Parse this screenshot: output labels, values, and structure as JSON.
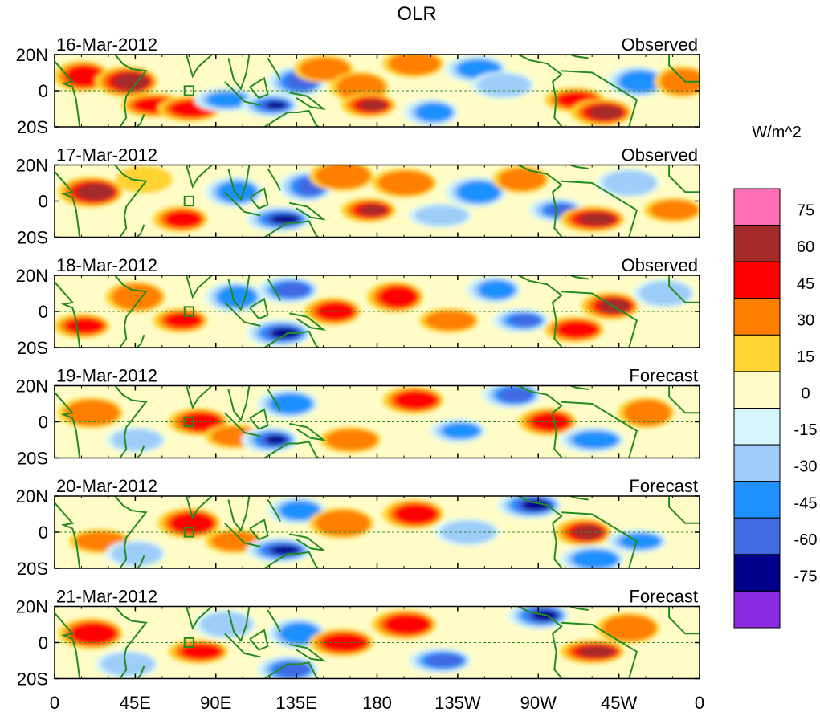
{
  "chart_data": {
    "type": "heatmap",
    "title": "OLR",
    "units_label": "W/m^2",
    "panels": [
      {
        "date": "16-Mar-2012",
        "kind": "Observed"
      },
      {
        "date": "17-Mar-2012",
        "kind": "Observed"
      },
      {
        "date": "18-Mar-2012",
        "kind": "Observed"
      },
      {
        "date": "19-Mar-2012",
        "kind": "Forecast"
      },
      {
        "date": "20-Mar-2012",
        "kind": "Forecast"
      },
      {
        "date": "21-Mar-2012",
        "kind": "Forecast"
      }
    ],
    "x_ticks": [
      "0",
      "45E",
      "90E",
      "135E",
      "180",
      "135W",
      "90W",
      "45W",
      "0"
    ],
    "y_ticks": [
      "20N",
      "0",
      "20S"
    ],
    "xlim_deg_east": [
      0,
      360
    ],
    "ylim_deg_north": [
      -20,
      20
    ],
    "colorbar": {
      "tick_labels": [
        "75",
        "60",
        "45",
        "30",
        "15",
        "0",
        "-15",
        "-30",
        "-45",
        "-60",
        "-75"
      ],
      "levels": [
        -75,
        -60,
        -45,
        -30,
        -15,
        0,
        15,
        30,
        45,
        60,
        75
      ],
      "colors": [
        "#8a2be2",
        "#00008b",
        "#4169e1",
        "#1e90ff",
        "#9fcdf9",
        "#d4f6fc",
        "#fffcc8",
        "#fed332",
        "#ff7f00",
        "#ff0000",
        "#a52a2a",
        "#ff6eb4"
      ]
    },
    "anomaly_regions": [
      [
        {
          "lon": 15,
          "lat": 8,
          "level": 3
        },
        {
          "lon": 40,
          "lat": 5,
          "level": 4
        },
        {
          "lon": 55,
          "lat": -8,
          "level": 3
        },
        {
          "lon": 75,
          "lat": -10,
          "level": 3
        },
        {
          "lon": 95,
          "lat": -5,
          "level": -3
        },
        {
          "lon": 120,
          "lat": -8,
          "level": -5
        },
        {
          "lon": 135,
          "lat": 5,
          "level": -4
        },
        {
          "lon": 150,
          "lat": 12,
          "level": 2
        },
        {
          "lon": 170,
          "lat": 2,
          "level": 2
        },
        {
          "lon": 175,
          "lat": -8,
          "level": 4
        },
        {
          "lon": 200,
          "lat": 15,
          "level": 2
        },
        {
          "lon": 210,
          "lat": -12,
          "level": -3
        },
        {
          "lon": 235,
          "lat": 12,
          "level": -3
        },
        {
          "lon": 250,
          "lat": 3,
          "level": -2
        },
        {
          "lon": 290,
          "lat": -5,
          "level": 3
        },
        {
          "lon": 305,
          "lat": -12,
          "level": 4
        },
        {
          "lon": 325,
          "lat": 5,
          "level": -3
        },
        {
          "lon": 350,
          "lat": 5,
          "level": 2
        }
      ],
      [
        {
          "lon": 20,
          "lat": 5,
          "level": 4
        },
        {
          "lon": 50,
          "lat": 12,
          "level": 1
        },
        {
          "lon": 70,
          "lat": -10,
          "level": 3
        },
        {
          "lon": 100,
          "lat": 5,
          "level": -3
        },
        {
          "lon": 125,
          "lat": -10,
          "level": -5
        },
        {
          "lon": 140,
          "lat": 8,
          "level": -4
        },
        {
          "lon": 160,
          "lat": 14,
          "level": 2
        },
        {
          "lon": 175,
          "lat": -5,
          "level": 4
        },
        {
          "lon": 195,
          "lat": 10,
          "level": 2
        },
        {
          "lon": 215,
          "lat": -8,
          "level": -2
        },
        {
          "lon": 235,
          "lat": 5,
          "level": -3
        },
        {
          "lon": 260,
          "lat": 12,
          "level": 2
        },
        {
          "lon": 280,
          "lat": -5,
          "level": -4
        },
        {
          "lon": 300,
          "lat": -10,
          "level": 4
        },
        {
          "lon": 320,
          "lat": 10,
          "level": -2
        },
        {
          "lon": 345,
          "lat": -5,
          "level": 2
        }
      ],
      [
        {
          "lon": 15,
          "lat": -8,
          "level": 3
        },
        {
          "lon": 45,
          "lat": 8,
          "level": 2
        },
        {
          "lon": 70,
          "lat": -5,
          "level": 3
        },
        {
          "lon": 100,
          "lat": 8,
          "level": -3
        },
        {
          "lon": 125,
          "lat": -12,
          "level": -5
        },
        {
          "lon": 130,
          "lat": 12,
          "level": -4
        },
        {
          "lon": 155,
          "lat": 0,
          "level": 3
        },
        {
          "lon": 190,
          "lat": 8,
          "level": 3
        },
        {
          "lon": 220,
          "lat": -5,
          "level": 2
        },
        {
          "lon": 245,
          "lat": 12,
          "level": -3
        },
        {
          "lon": 260,
          "lat": -5,
          "level": -4
        },
        {
          "lon": 290,
          "lat": -10,
          "level": 3
        },
        {
          "lon": 310,
          "lat": 3,
          "level": 4
        },
        {
          "lon": 340,
          "lat": 10,
          "level": -2
        }
      ],
      [
        {
          "lon": 20,
          "lat": 5,
          "level": 2
        },
        {
          "lon": 45,
          "lat": -10,
          "level": -2
        },
        {
          "lon": 80,
          "lat": 0,
          "level": 3
        },
        {
          "lon": 100,
          "lat": -8,
          "level": 2
        },
        {
          "lon": 120,
          "lat": -10,
          "level": -5
        },
        {
          "lon": 130,
          "lat": 10,
          "level": -3
        },
        {
          "lon": 165,
          "lat": -10,
          "level": 2
        },
        {
          "lon": 200,
          "lat": 12,
          "level": 3
        },
        {
          "lon": 225,
          "lat": -5,
          "level": -3
        },
        {
          "lon": 255,
          "lat": 15,
          "level": -4
        },
        {
          "lon": 275,
          "lat": 0,
          "level": 3
        },
        {
          "lon": 300,
          "lat": -10,
          "level": -3
        },
        {
          "lon": 330,
          "lat": 5,
          "level": 2
        }
      ],
      [
        {
          "lon": 25,
          "lat": -5,
          "level": 2
        },
        {
          "lon": 45,
          "lat": -12,
          "level": -2
        },
        {
          "lon": 75,
          "lat": 5,
          "level": 3
        },
        {
          "lon": 100,
          "lat": -5,
          "level": 2
        },
        {
          "lon": 125,
          "lat": -10,
          "level": -5
        },
        {
          "lon": 135,
          "lat": 12,
          "level": -3
        },
        {
          "lon": 160,
          "lat": 5,
          "level": 2
        },
        {
          "lon": 200,
          "lat": 10,
          "level": 3
        },
        {
          "lon": 230,
          "lat": 0,
          "level": -2
        },
        {
          "lon": 265,
          "lat": 15,
          "level": -5
        },
        {
          "lon": 295,
          "lat": 0,
          "level": 4
        },
        {
          "lon": 300,
          "lat": -15,
          "level": -3
        },
        {
          "lon": 325,
          "lat": -5,
          "level": -3
        }
      ],
      [
        {
          "lon": 20,
          "lat": 5,
          "level": 3
        },
        {
          "lon": 40,
          "lat": -12,
          "level": -2
        },
        {
          "lon": 80,
          "lat": -5,
          "level": 3
        },
        {
          "lon": 95,
          "lat": 10,
          "level": -2
        },
        {
          "lon": 130,
          "lat": -15,
          "level": -4
        },
        {
          "lon": 135,
          "lat": 5,
          "level": -3
        },
        {
          "lon": 160,
          "lat": 0,
          "level": 3
        },
        {
          "lon": 195,
          "lat": 10,
          "level": 3
        },
        {
          "lon": 215,
          "lat": -10,
          "level": -4
        },
        {
          "lon": 270,
          "lat": 15,
          "level": -5
        },
        {
          "lon": 300,
          "lat": -5,
          "level": 4
        },
        {
          "lon": 320,
          "lat": 8,
          "level": 2
        }
      ]
    ]
  }
}
